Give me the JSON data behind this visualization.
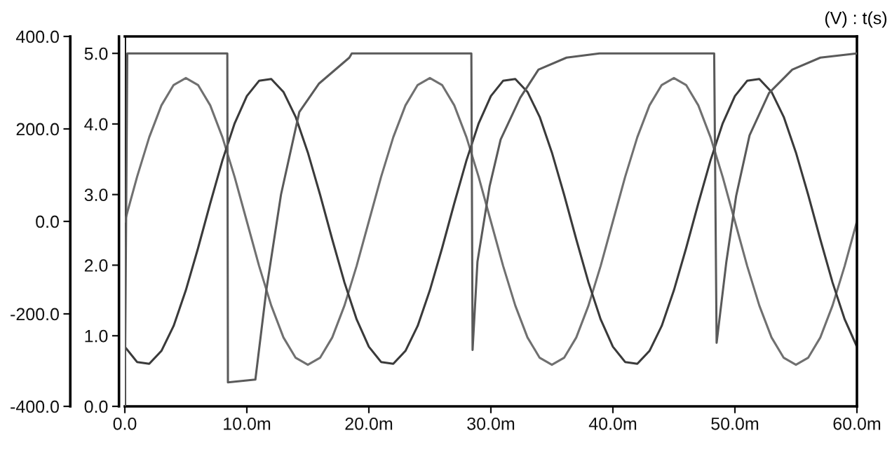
{
  "chart_data": {
    "type": "line",
    "annotations": [
      "(V) : t(s)"
    ],
    "x": [
      0,
      1,
      2,
      3,
      4,
      5,
      6,
      7,
      8,
      9,
      10,
      11,
      12,
      13,
      14,
      15,
      16,
      17,
      18,
      19,
      20,
      21,
      22,
      23,
      24,
      25,
      26,
      27,
      28,
      29,
      30,
      31,
      32,
      33,
      34,
      35,
      36,
      37,
      38,
      39,
      40,
      41,
      42,
      43,
      44,
      45,
      46,
      47,
      48,
      49,
      50,
      51,
      52,
      53,
      54,
      55,
      56,
      57,
      58,
      59,
      60
    ],
    "xlim": [
      0,
      60
    ],
    "xticks": [
      {
        "value": 0,
        "label": "0.0"
      },
      {
        "value": 10,
        "label": "10.0m"
      },
      {
        "value": 20,
        "label": "20.0m"
      },
      {
        "value": 30,
        "label": "30.0m"
      },
      {
        "value": 40,
        "label": "40.0m"
      },
      {
        "value": 50,
        "label": "50.0m"
      },
      {
        "value": 60,
        "label": "60.0m"
      }
    ],
    "ylim": [
      -400,
      400
    ],
    "yticks": [
      {
        "value": -400,
        "label": "-400.0"
      },
      {
        "value": -200,
        "label": "-200.0"
      },
      {
        "value": 0,
        "label": "0.0"
      },
      {
        "value": 200,
        "label": "200.0"
      },
      {
        "value": 400,
        "label": "400.0"
      }
    ],
    "y2lim": [
      0,
      5.24
    ],
    "y2ticks": [
      {
        "value": 0,
        "label": "0.0"
      },
      {
        "value": 1,
        "label": "1.0"
      },
      {
        "value": 2,
        "label": "2.0"
      },
      {
        "value": 3,
        "label": "3.0"
      },
      {
        "value": 4,
        "label": "4.0"
      },
      {
        "value": 5,
        "label": "5.0"
      }
    ],
    "grid": false,
    "marker": "none",
    "line_style": "solid",
    "series": [
      {
        "color": "#707070",
        "values": [
          0,
          96,
          182,
          251,
          295,
          310,
          295,
          251,
          182,
          96,
          0,
          -96,
          -182,
          -251,
          -295,
          -310,
          -295,
          -251,
          -182,
          -96,
          0,
          96,
          182,
          251,
          295,
          310,
          295,
          251,
          182,
          96,
          0,
          -96,
          -182,
          -251,
          -295,
          -310,
          -295,
          -251,
          -182,
          -96,
          0,
          96,
          182,
          251,
          295,
          310,
          295,
          251,
          182,
          96,
          0,
          -96,
          -182,
          -251,
          -295,
          -310,
          -295,
          -251,
          -182,
          -96,
          0
        ]
      },
      {
        "color": "#3a3a3a",
        "values": [
          -271,
          -304,
          -308,
          -280,
          -226,
          -149,
          -58,
          39,
          132,
          212,
          271,
          304,
          308,
          280,
          226,
          149,
          58,
          -39,
          -132,
          -212,
          -271,
          -304,
          -308,
          -280,
          -226,
          -149,
          -58,
          39,
          132,
          212,
          271,
          304,
          308,
          280,
          226,
          149,
          58,
          -39,
          -132,
          -212,
          -271,
          -304,
          -308,
          -280,
          -226,
          -149,
          -58,
          39,
          132,
          212,
          271,
          304,
          308,
          280,
          226,
          149,
          58,
          -39,
          -132,
          -212,
          -271
        ]
      },
      {
        "color": "#5a5a5a",
        "axis": "y2",
        "x": [
          0,
          0.2,
          8.4,
          8.45,
          10.7,
          11.6,
          12.8,
          14.3,
          15.9,
          18.4,
          18.6,
          28.4,
          28.5,
          28.9,
          29.9,
          30.8,
          32.4,
          33.9,
          36.2,
          38.9,
          48.3,
          48.5,
          49.3,
          50.1,
          51.2,
          52.8,
          54.7,
          57.0,
          60
        ],
        "values": [
          0,
          5.0,
          5.0,
          0.34,
          0.38,
          1.65,
          3.0,
          4.17,
          4.57,
          4.94,
          5.0,
          5.0,
          0.8,
          2.05,
          3.12,
          3.78,
          4.37,
          4.77,
          4.94,
          5.0,
          5.0,
          0.9,
          2.05,
          2.98,
          3.84,
          4.44,
          4.77,
          4.94,
          5.0
        ]
      }
    ]
  }
}
